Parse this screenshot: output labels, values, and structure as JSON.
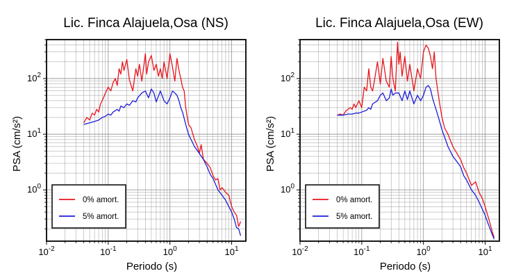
{
  "chart_data": [
    {
      "type": "line",
      "title": "Lic. Finca Alajuela,Osa (NS)",
      "xlabel": "Periodo (s)",
      "ylabel": "PSA (cm/s²)",
      "x_scale": "log",
      "y_scale": "log",
      "xlim": [
        0.01,
        17
      ],
      "ylim": [
        0.12,
        500
      ],
      "grid": true,
      "legend_position": "bottom-left",
      "x_ticks": [
        {
          "base": "10",
          "exp": "-2"
        },
        {
          "base": "10",
          "exp": "-1"
        },
        {
          "base": "10",
          "exp": "0"
        },
        {
          "base": "10",
          "exp": "1"
        }
      ],
      "y_ticks": [
        {
          "base": "10",
          "exp": "0"
        },
        {
          "base": "10",
          "exp": "1"
        },
        {
          "base": "10",
          "exp": "2"
        }
      ],
      "series": [
        {
          "name": "0% amort.",
          "color": "#e8141c",
          "x": [
            0.04,
            0.045,
            0.05,
            0.055,
            0.06,
            0.065,
            0.07,
            0.075,
            0.08,
            0.09,
            0.1,
            0.11,
            0.12,
            0.13,
            0.14,
            0.15,
            0.16,
            0.17,
            0.18,
            0.2,
            0.22,
            0.25,
            0.28,
            0.3,
            0.32,
            0.35,
            0.38,
            0.4,
            0.42,
            0.45,
            0.5,
            0.55,
            0.6,
            0.65,
            0.7,
            0.75,
            0.8,
            0.9,
            1.0,
            1.1,
            1.2,
            1.3,
            1.4,
            1.5,
            1.6,
            1.7,
            1.8,
            2.0,
            2.2,
            2.5,
            2.8,
            3.0,
            3.2,
            3.5,
            4.0,
            4.5,
            5.0,
            5.5,
            6.0,
            6.5,
            7.0,
            8.0,
            9.0,
            10.0,
            11.0,
            12.0,
            13.0,
            14.0
          ],
          "values": [
            16,
            20,
            18,
            24,
            22,
            28,
            25,
            35,
            40,
            55,
            70,
            60,
            85,
            100,
            75,
            150,
            120,
            200,
            140,
            220,
            95,
            60,
            150,
            110,
            180,
            90,
            180,
            280,
            120,
            200,
            260,
            140,
            180,
            110,
            150,
            100,
            200,
            100,
            280,
            160,
            90,
            230,
            140,
            100,
            70,
            60,
            30,
            15,
            13,
            8,
            6,
            4.5,
            6.5,
            3.5,
            3.0,
            2.5,
            1.8,
            1.5,
            1.6,
            1.0,
            1.1,
            0.9,
            0.8,
            0.5,
            0.4,
            0.35,
            0.22,
            0.27
          ]
        },
        {
          "name": "5% amort.",
          "color": "#1c1cd8",
          "x": [
            0.04,
            0.05,
            0.06,
            0.07,
            0.08,
            0.09,
            0.1,
            0.11,
            0.12,
            0.14,
            0.15,
            0.16,
            0.18,
            0.2,
            0.22,
            0.25,
            0.28,
            0.3,
            0.35,
            0.4,
            0.45,
            0.5,
            0.55,
            0.6,
            0.7,
            0.8,
            0.9,
            1.0,
            1.1,
            1.2,
            1.3,
            1.4,
            1.5,
            1.6,
            1.8,
            2.0,
            2.5,
            3.0,
            3.5,
            4.0,
            4.5,
            5.0,
            6.0,
            7.0,
            8.0,
            9.0,
            10.0,
            11.0,
            12.0,
            13.0,
            14.0
          ],
          "values": [
            15,
            16,
            17,
            18,
            20,
            21,
            23,
            22,
            25,
            28,
            26,
            32,
            30,
            35,
            33,
            40,
            38,
            45,
            55,
            60,
            45,
            65,
            55,
            38,
            60,
            40,
            35,
            45,
            60,
            55,
            50,
            40,
            30,
            25,
            15,
            10,
            6,
            4.5,
            3.5,
            2.6,
            1.9,
            1.6,
            1.0,
            0.8,
            0.65,
            0.5,
            0.4,
            0.3,
            0.21,
            0.2,
            0.15
          ]
        }
      ]
    },
    {
      "type": "line",
      "title": "Lic. Finca Alajuela,Osa (EW)",
      "xlabel": "Periodo (s)",
      "ylabel": "PSA (cm/s²)",
      "x_scale": "log",
      "y_scale": "log",
      "xlim": [
        0.01,
        17
      ],
      "ylim": [
        0.12,
        500
      ],
      "grid": true,
      "legend_position": "bottom-left",
      "x_ticks": [
        {
          "base": "10",
          "exp": "-2"
        },
        {
          "base": "10",
          "exp": "-1"
        },
        {
          "base": "10",
          "exp": "0"
        },
        {
          "base": "10",
          "exp": "1"
        }
      ],
      "y_ticks": [
        {
          "base": "10",
          "exp": "0"
        },
        {
          "base": "10",
          "exp": "1"
        },
        {
          "base": "10",
          "exp": "2"
        }
      ],
      "series": [
        {
          "name": "0% amort.",
          "color": "#e8141c",
          "x": [
            0.04,
            0.045,
            0.05,
            0.055,
            0.06,
            0.065,
            0.07,
            0.075,
            0.08,
            0.09,
            0.1,
            0.11,
            0.12,
            0.13,
            0.14,
            0.15,
            0.16,
            0.18,
            0.2,
            0.22,
            0.25,
            0.28,
            0.3,
            0.32,
            0.35,
            0.38,
            0.4,
            0.42,
            0.45,
            0.5,
            0.55,
            0.6,
            0.7,
            0.8,
            0.9,
            1.0,
            1.1,
            1.2,
            1.3,
            1.4,
            1.5,
            1.6,
            1.8,
            2.0,
            2.2,
            2.5,
            3.0,
            3.5,
            4.0,
            4.5,
            5.0,
            6.0,
            7.0,
            8.0,
            9.0,
            10.0,
            11.0,
            12.0,
            13.0,
            14.0
          ],
          "values": [
            22,
            23,
            22,
            26,
            28,
            30,
            28,
            35,
            30,
            40,
            30,
            70,
            60,
            150,
            70,
            60,
            90,
            200,
            80,
            230,
            90,
            70,
            250,
            100,
            60,
            450,
            180,
            300,
            110,
            250,
            90,
            180,
            60,
            150,
            100,
            300,
            400,
            350,
            250,
            150,
            300,
            100,
            40,
            20,
            13,
            10,
            6,
            4.5,
            3.5,
            2.5,
            2.0,
            1.2,
            1.4,
            0.9,
            0.7,
            0.5,
            0.35,
            0.25,
            0.18,
            0.14
          ]
        },
        {
          "name": "5% amort.",
          "color": "#1c1cd8",
          "x": [
            0.04,
            0.05,
            0.06,
            0.07,
            0.08,
            0.09,
            0.1,
            0.11,
            0.12,
            0.13,
            0.14,
            0.15,
            0.18,
            0.2,
            0.22,
            0.25,
            0.28,
            0.3,
            0.32,
            0.35,
            0.4,
            0.45,
            0.5,
            0.55,
            0.6,
            0.7,
            0.8,
            0.9,
            1.0,
            1.1,
            1.2,
            1.3,
            1.4,
            1.5,
            1.6,
            1.8,
            2.0,
            2.5,
            3.0,
            3.5,
            4.0,
            4.5,
            5.0,
            6.0,
            7.0,
            8.0,
            9.0,
            10.0,
            11.0,
            12.0,
            13.0,
            14.0
          ],
          "values": [
            22,
            22,
            23,
            23,
            24,
            24,
            25,
            26,
            27,
            30,
            28,
            35,
            40,
            50,
            55,
            40,
            45,
            65,
            50,
            55,
            55,
            40,
            60,
            42,
            60,
            35,
            50,
            40,
            50,
            70,
            75,
            65,
            45,
            35,
            28,
            18,
            12,
            6,
            4,
            3.2,
            2.6,
            1.8,
            1.5,
            1.0,
            0.8,
            0.6,
            0.45,
            0.35,
            0.26,
            0.2,
            0.16,
            0.13
          ]
        }
      ]
    }
  ]
}
